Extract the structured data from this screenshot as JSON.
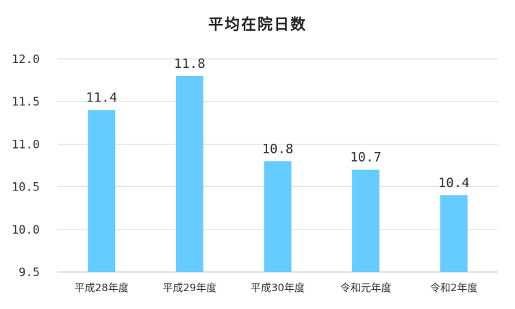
{
  "chart_data": {
    "type": "bar",
    "title": "平均在院日数",
    "xlabel": "",
    "ylabel": "",
    "categories": [
      "平成28年度",
      "平成29年度",
      "平成30年度",
      "令和元年度",
      "令和2年度"
    ],
    "values": [
      11.4,
      11.8,
      10.8,
      10.7,
      10.4
    ],
    "data_labels": [
      "11.4",
      "11.8",
      "10.8",
      "10.7",
      "10.4"
    ],
    "ylim": [
      9.5,
      12.0
    ],
    "yticks": [
      9.5,
      10.0,
      10.5,
      11.0,
      11.5,
      12.0
    ],
    "ytick_labels": [
      "9.5",
      "10.0",
      "10.5",
      "11.0",
      "11.5",
      "12.0"
    ],
    "grid": true,
    "legend": "none",
    "colors": {
      "bar": "#66CCFF",
      "grid": "#D9D9D9",
      "axis": "#BFBFBF",
      "text": "#333333"
    }
  }
}
